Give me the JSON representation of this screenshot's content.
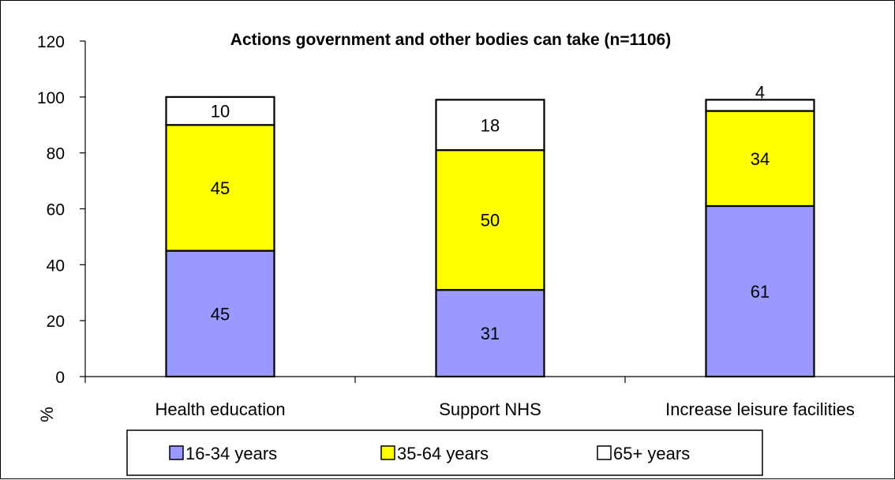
{
  "chart_data": {
    "type": "bar",
    "stacked": true,
    "title": "Actions government and other bodies can take (n=1106)",
    "xlabel": "",
    "ylabel": "%",
    "ylim": [
      0,
      120
    ],
    "yticks": [
      0,
      20,
      40,
      60,
      80,
      100,
      120
    ],
    "grid": false,
    "legend_position": "bottom",
    "categories": [
      "Health education",
      "Support NHS",
      "Increase leisure facilities"
    ],
    "series": [
      {
        "name": "16-34 years",
        "values": [
          45,
          31,
          61
        ],
        "color": "#9999ff"
      },
      {
        "name": "35-64 years",
        "values": [
          45,
          50,
          34
        ],
        "color": "#ffff00"
      },
      {
        "name": "65+ years",
        "values": [
          10,
          18,
          4
        ],
        "color": "#ffffff"
      }
    ]
  }
}
